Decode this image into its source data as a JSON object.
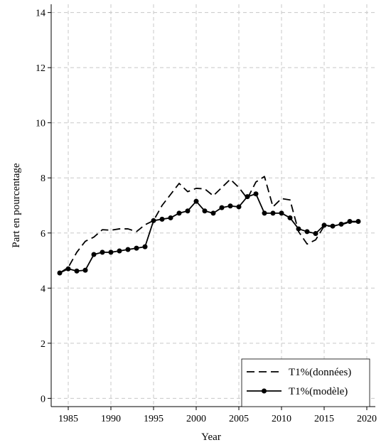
{
  "chart_data": {
    "type": "line",
    "title": "",
    "xlabel": "Year",
    "ylabel": "Part en pourcentage",
    "xlim": [
      1983,
      2021
    ],
    "ylim": [
      -0.3,
      14.3
    ],
    "xticks": [
      1985,
      1990,
      1995,
      2000,
      2005,
      2010,
      2015,
      2020
    ],
    "yticks": [
      0,
      2,
      4,
      6,
      8,
      10,
      12,
      14
    ],
    "grid": true,
    "legend_position": "bottom-right",
    "series": [
      {
        "name": "T1%(données)",
        "style": "dashed",
        "markers": false,
        "color": "#000000",
        "x": [
          1984,
          1985,
          1986,
          1987,
          1988,
          1989,
          1990,
          1991,
          1992,
          1993,
          1994,
          1995,
          1996,
          1997,
          1998,
          1999,
          2000,
          2001,
          2002,
          2003,
          2004,
          2005,
          2006,
          2007,
          2008,
          2009,
          2010,
          2011,
          2012,
          2013,
          2014,
          2015,
          2016,
          2017,
          2018,
          2019
        ],
        "y": [
          4.55,
          4.75,
          5.3,
          5.7,
          5.85,
          6.12,
          6.1,
          6.15,
          6.15,
          6.05,
          6.3,
          6.45,
          7.0,
          7.4,
          7.8,
          7.5,
          7.62,
          7.6,
          7.35,
          7.65,
          7.95,
          7.65,
          7.25,
          7.85,
          8.05,
          6.95,
          7.25,
          7.2,
          6.05,
          5.6,
          5.75,
          6.25,
          6.25,
          6.3,
          6.4,
          6.4
        ]
      },
      {
        "name": "T1%(modèle)",
        "style": "solid",
        "markers": true,
        "color": "#000000",
        "x": [
          1984,
          1985,
          1986,
          1987,
          1988,
          1989,
          1990,
          1991,
          1992,
          1993,
          1994,
          1995,
          1996,
          1997,
          1998,
          1999,
          2000,
          2001,
          2002,
          2003,
          2004,
          2005,
          2006,
          2007,
          2008,
          2009,
          2010,
          2011,
          2012,
          2013,
          2014,
          2015,
          2016,
          2017,
          2018,
          2019
        ],
        "y": [
          4.55,
          4.7,
          4.62,
          4.65,
          5.22,
          5.3,
          5.3,
          5.35,
          5.4,
          5.45,
          5.5,
          6.45,
          6.5,
          6.55,
          6.72,
          6.8,
          7.15,
          6.8,
          6.72,
          6.92,
          6.98,
          6.95,
          7.32,
          7.42,
          6.72,
          6.72,
          6.72,
          6.55,
          6.15,
          6.05,
          5.98,
          6.28,
          6.25,
          6.32,
          6.42,
          6.42
        ]
      }
    ]
  }
}
